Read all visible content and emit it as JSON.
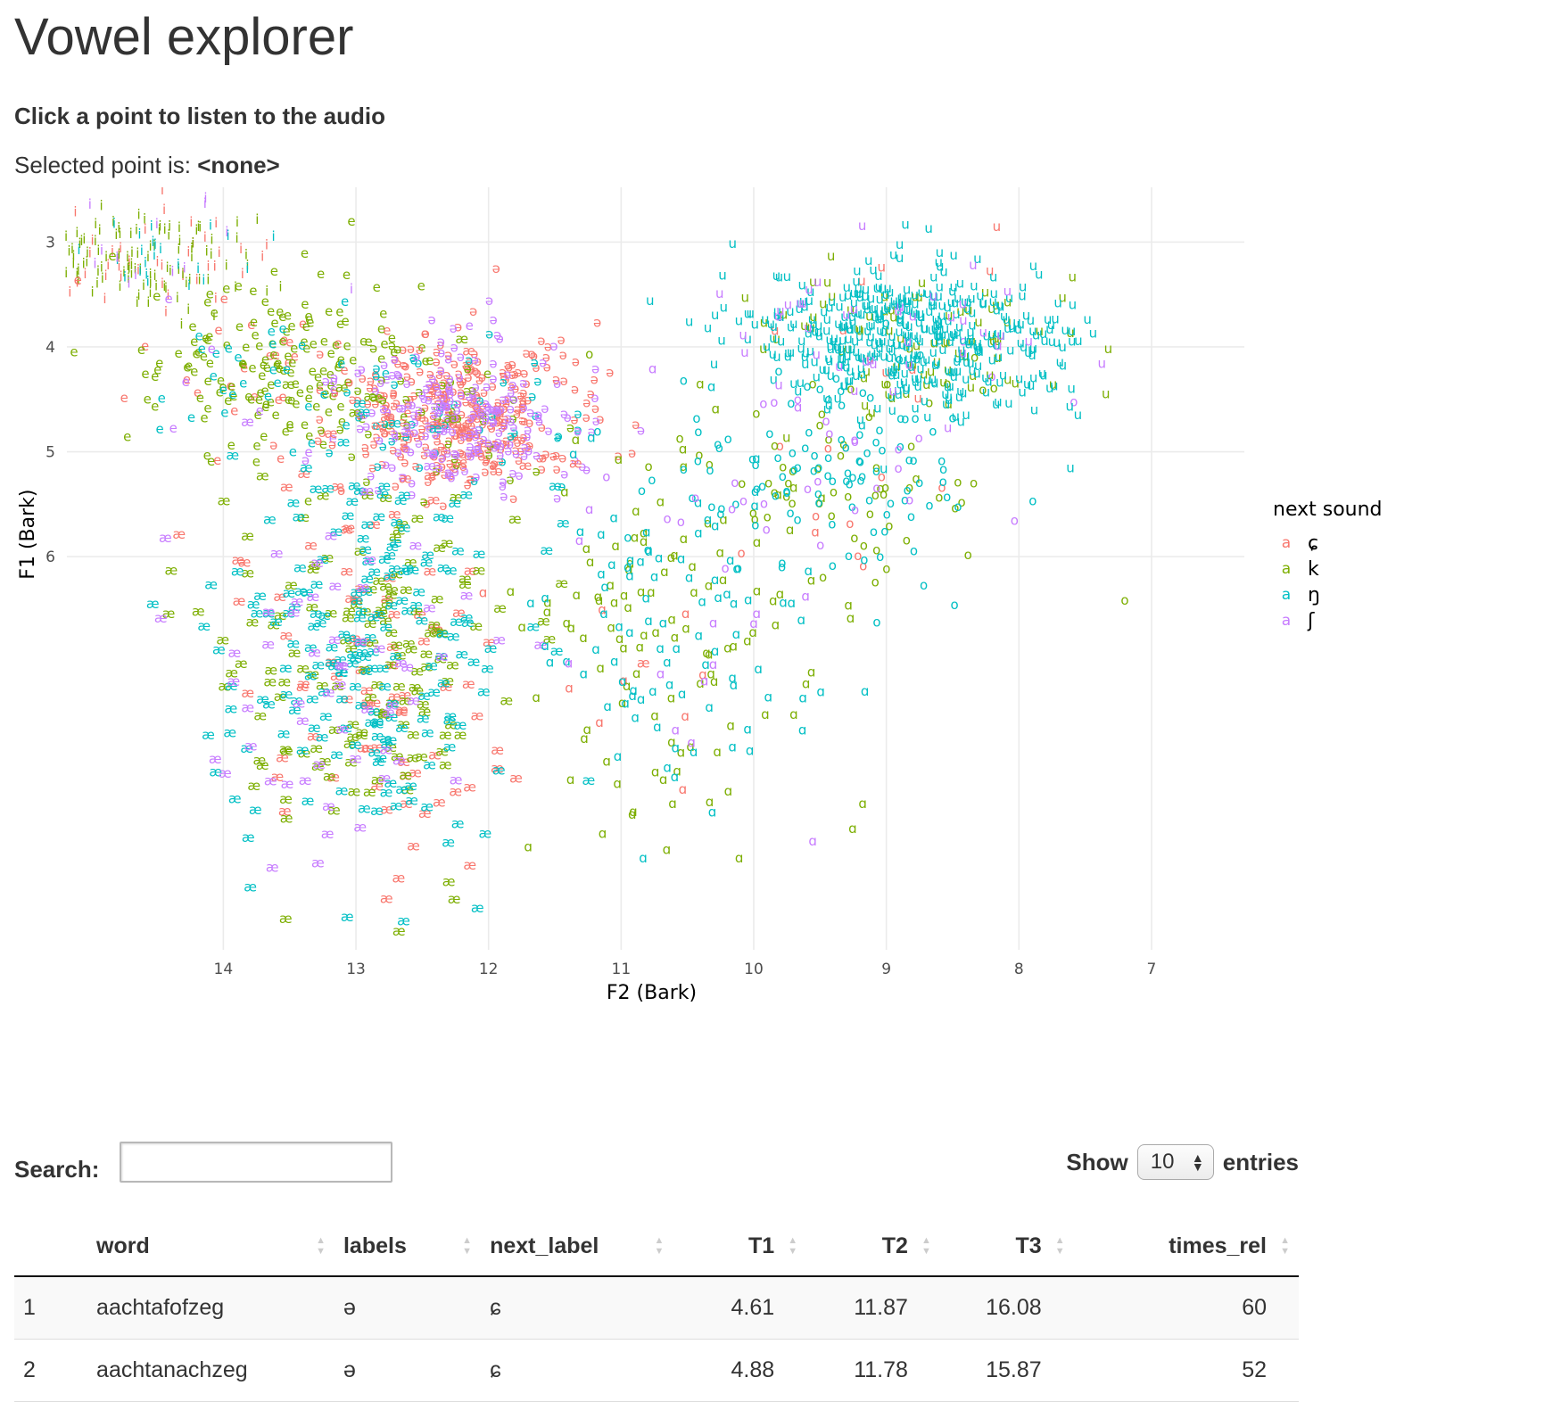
{
  "app": {
    "title": "Vowel explorer",
    "instruction": "Click a point to listen to the audio",
    "selected_label": "Selected point is:",
    "selected_value": "<none>"
  },
  "chart_data": {
    "type": "scatter",
    "xlabel": "F2 (Bark)",
    "ylabel": "F1 (Bark)",
    "x_reversed": true,
    "y_reversed": true,
    "xlim": [
      15.2,
      6.3
    ],
    "ylim": [
      2.35,
      9.75
    ],
    "x_ticks": [
      14,
      13,
      12,
      11,
      10,
      9,
      8,
      7
    ],
    "y_ticks": [
      3,
      4,
      5,
      6
    ],
    "grid": true,
    "legend": {
      "title": "next sound",
      "position": "right",
      "key_glyph": "a",
      "entries": [
        {
          "label": "ɕ",
          "color": "#F8766D"
        },
        {
          "label": "k",
          "color": "#7CAE00"
        },
        {
          "label": "ŋ",
          "color": "#00BFC4"
        },
        {
          "label": "ʃ",
          "color": "#C77CFF"
        }
      ]
    },
    "point_clusters": [
      {
        "vowel": "i",
        "f2": 14.6,
        "f1": 3.2,
        "f2_sd": 0.45,
        "f1_sd": 0.25,
        "counts": [
          40,
          110,
          25,
          15
        ]
      },
      {
        "vowel": "e",
        "f2": 13.6,
        "f1": 4.2,
        "f2_sd": 0.55,
        "f1_sd": 0.4,
        "counts": [
          30,
          160,
          30,
          10
        ]
      },
      {
        "vowel": "ə",
        "f2": 12.2,
        "f1": 4.7,
        "f2_sd": 0.45,
        "f1_sd": 0.35,
        "counts": [
          330,
          40,
          40,
          210
        ]
      },
      {
        "vowel": "æ",
        "f2": 12.9,
        "f1": 6.9,
        "f2_sd": 0.55,
        "f1_sd": 1.0,
        "counts": [
          90,
          150,
          200,
          60
        ]
      },
      {
        "vowel": "ɑ",
        "f2": 10.6,
        "f1": 6.8,
        "f2_sd": 0.55,
        "f1_sd": 1.0,
        "counts": [
          10,
          110,
          90,
          15
        ]
      },
      {
        "vowel": "o",
        "f2": 9.4,
        "f1": 5.3,
        "f2_sd": 0.65,
        "f1_sd": 0.55,
        "counts": [
          10,
          60,
          110,
          30
        ]
      },
      {
        "vowel": "u",
        "f2": 8.8,
        "f1": 3.95,
        "f2_sd": 0.6,
        "f1_sd": 0.35,
        "counts": [
          10,
          80,
          460,
          40
        ]
      }
    ]
  },
  "table": {
    "search_label": "Search:",
    "search_value": "",
    "show_label": "Show",
    "entries_label": "entries",
    "page_size": "10",
    "columns": [
      "",
      "word",
      "labels",
      "next_label",
      "T1",
      "T2",
      "T3",
      "times_rel"
    ],
    "rows": [
      [
        "1",
        "aachtafofzeg",
        "ə",
        "ɕ",
        "4.61",
        "11.87",
        "16.08",
        "60"
      ],
      [
        "2",
        "aachtanachzeg",
        "ə",
        "ɕ",
        "4.88",
        "11.78",
        "15.87",
        "52"
      ]
    ]
  }
}
